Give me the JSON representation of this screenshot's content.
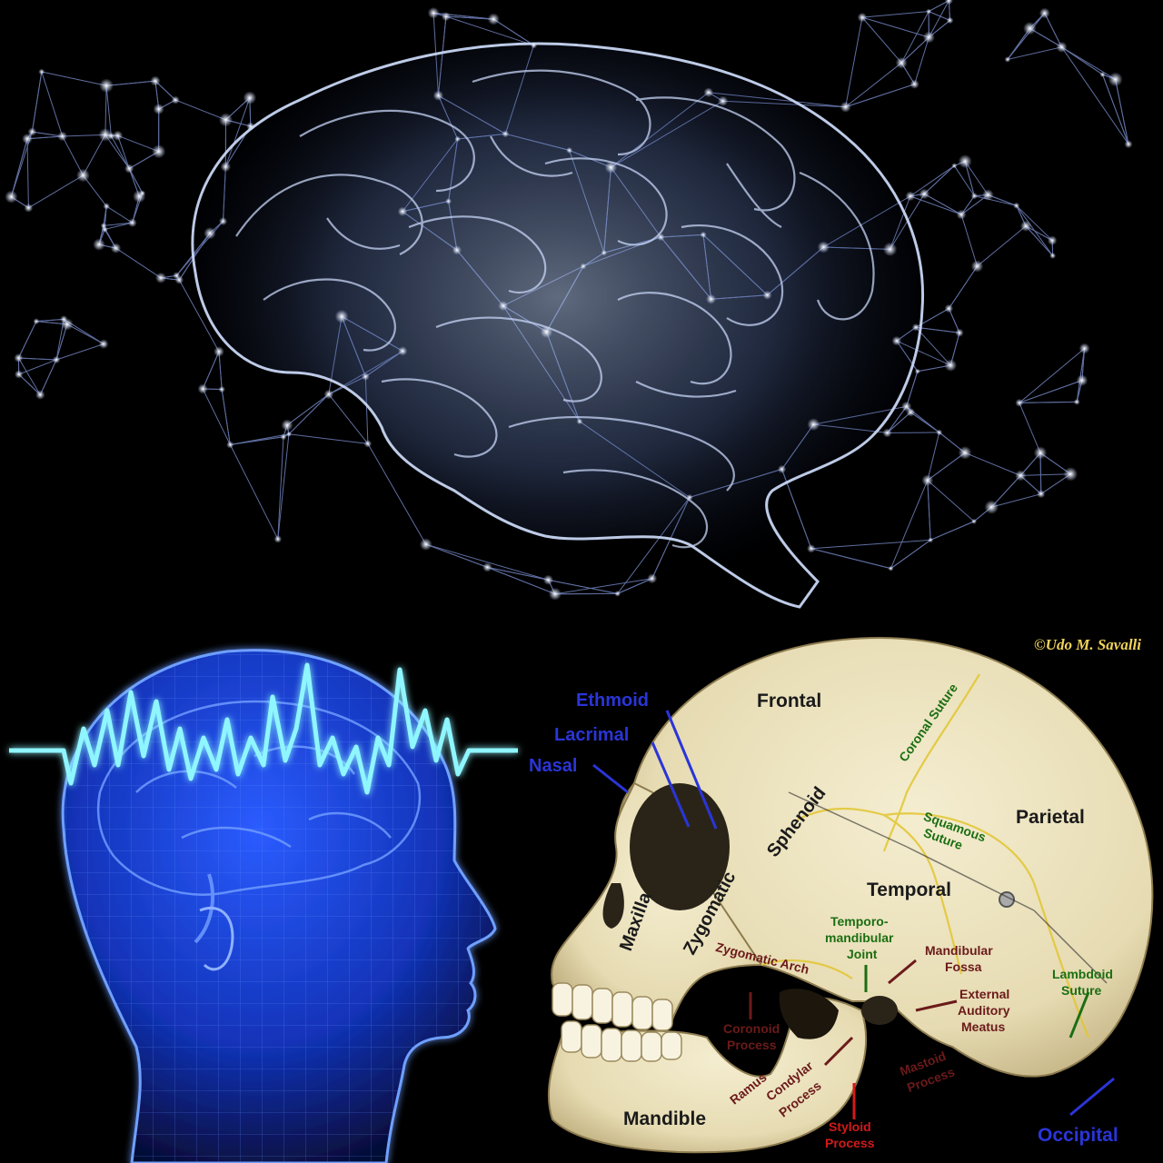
{
  "credit": "©Udo M. Savalli",
  "bones": {
    "frontal": "Frontal",
    "parietal": "Parietal",
    "temporal": "Temporal",
    "sphenoid": "Sphenoid",
    "zygomatic": "Zygomatic",
    "maxilla": "Maxilla",
    "mandible": "Mandible",
    "occipital": "Occipital",
    "ethmoid": "Ethmoid",
    "lacrimal": "Lacrimal",
    "nasal": "Nasal"
  },
  "sutures": {
    "coronal": "Coronal Suture",
    "squamous_1": "Squamous",
    "squamous_2": "Suture",
    "lambdoid_1": "Lambdoid",
    "lambdoid_2": "Suture"
  },
  "features": {
    "tmj_1": "Temporo-",
    "tmj_2": "mandibular",
    "tmj_3": "Joint",
    "mandibular_fossa_1": "Mandibular",
    "mandibular_fossa_2": "Fossa",
    "eam_1": "External",
    "eam_2": "Auditory",
    "eam_3": "Meatus",
    "zygomatic_arch": "Zygomatic Arch",
    "coronoid_1": "Coronoid",
    "coronoid_2": "Process",
    "ramus": "Ramus",
    "condylar_1": "Condylar",
    "condylar_2": "Process",
    "mastoid_1": "Mastoid",
    "mastoid_2": "Process",
    "styloid_1": "Styloid",
    "styloid_2": "Process"
  },
  "colors": {
    "bone_label_blue": "#2a35d8",
    "suture_green": "#1b6e12",
    "feature_maroon": "#6b1a1a",
    "styloid_red": "#d21a1a",
    "credit_gold": "#f0d25a",
    "skull_bone": "#ece3bf",
    "brain_glow": "#9fb6e6",
    "head_blue": "#1f3fe0",
    "eeg_cyan": "#7ff0ff"
  },
  "icons": {
    "top": "neural-network-brain-illustration",
    "bottom_left": "head-silhouette-brainwave-illustration",
    "bottom_right": "human-skull-lateral-view-photo"
  }
}
